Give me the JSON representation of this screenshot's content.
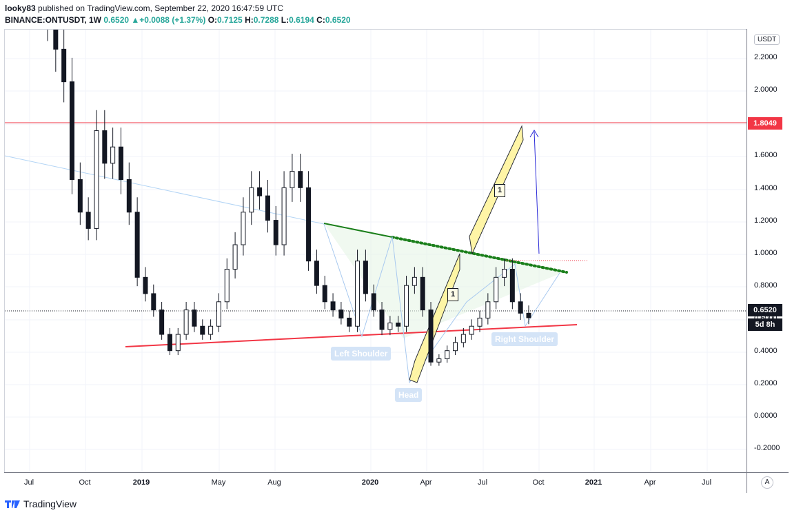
{
  "header": {
    "author": "looky83",
    "published_text": "published on TradingView.com, September 22, 2020 16:47:59 UTC",
    "symbol": "BINANCE:ONTUSDT, 1W",
    "last": "0.6520",
    "change": "▲+0.0088 (+1.37%)",
    "o_label": "O:",
    "o_value": "0.7125",
    "h_label": "H:",
    "h_value": "0.7288",
    "l_label": "L:",
    "l_value": "0.6194",
    "c_label": "C:",
    "c_value": "0.6520"
  },
  "price_axis": {
    "currency": "USDT",
    "ticks": [
      "2.2000",
      "2.0000",
      "1.8000",
      "1.6000",
      "1.4000",
      "1.2000",
      "1.0000",
      "0.8000",
      "0.6000",
      "0.4000",
      "0.2000",
      "0.0000",
      "-0.2000"
    ],
    "resistance_label": "1.8049",
    "current_price_label": "0.6520",
    "countdown_label": "5d 8h"
  },
  "time_axis": {
    "ticks": [
      "Jul",
      "Oct",
      "2019",
      "May",
      "Aug",
      "2020",
      "Apr",
      "Jul",
      "Oct",
      "2021",
      "Apr",
      "Jul"
    ],
    "bold_ticks": [
      "2019",
      "2020",
      "2021"
    ],
    "auto_button": "A"
  },
  "annotations": {
    "left_shoulder": "Left Shoulder",
    "head": "Head",
    "right_shoulder": "Right Shoulder",
    "target1_label": "1",
    "target2_label": "1"
  },
  "colors": {
    "up": "#26a69a",
    "resistance": "#f23645",
    "neckline_support": "#f23645",
    "descending": "#1b7f1b",
    "label_bg": "#d4e4f7",
    "arrow": "#2a2ad8"
  },
  "footer": {
    "brand": "TradingView"
  },
  "chart_data": {
    "type": "candlestick",
    "title": "",
    "ylim": [
      -0.3,
      2.42
    ],
    "price_ticks": [
      2.2,
      2.0,
      1.8,
      1.6,
      1.4,
      1.2,
      1.0,
      0.8,
      0.6,
      0.4,
      0.2,
      0.0,
      -0.2
    ],
    "horizontal_resistance": 1.8049,
    "current_price": 0.652,
    "series": [
      {
        "name": "ONTUSDT 1W",
        "weekly_close_approx": [
          2.5,
          2.3,
          2.1,
          1.5,
          1.3,
          1.2,
          1.8,
          1.6,
          1.7,
          1.5,
          1.3,
          0.9,
          0.8,
          0.7,
          0.55,
          0.45,
          0.55,
          0.7,
          0.6,
          0.55,
          0.6,
          0.75,
          0.95,
          1.1,
          1.3,
          1.45,
          1.4,
          1.25,
          1.1,
          1.45,
          1.55,
          1.45,
          1.0,
          0.85,
          0.75,
          0.7,
          0.65,
          0.6,
          1.0,
          0.8,
          0.7,
          0.58,
          0.62,
          0.6,
          0.85,
          0.9,
          0.7,
          0.38,
          0.4,
          0.45,
          0.5,
          0.55,
          0.6,
          0.65,
          0.75,
          0.9,
          0.95,
          0.75,
          0.68,
          0.652
        ]
      }
    ]
  }
}
